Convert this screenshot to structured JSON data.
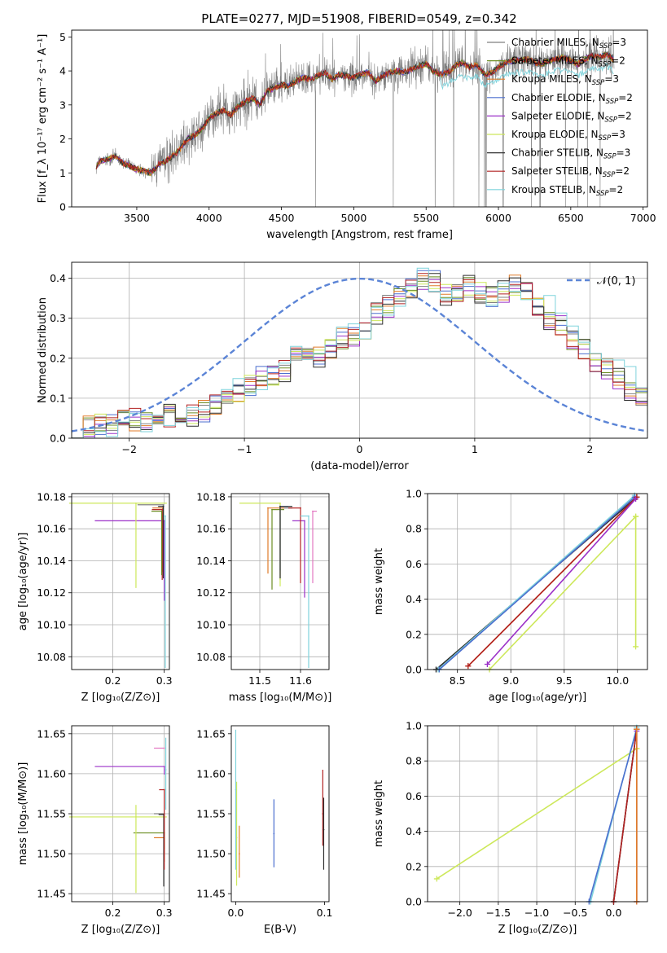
{
  "figure": {
    "title": "PLATE=0277, MJD=51908, FIBERID=0549, z=0.342"
  },
  "series_styles": [
    {
      "name": "Chabrier MILES",
      "nssp": "3",
      "color": "#808080"
    },
    {
      "name": "Salpeter MILES",
      "nssp": "2",
      "color": "#6b8e23"
    },
    {
      "name": "Kroupa MILES",
      "nssp": "3",
      "color": "#e07b2a"
    },
    {
      "name": "Chabrier ELODIE",
      "nssp": "2",
      "color": "#4c6fcf"
    },
    {
      "name": "Salpeter ELODIE",
      "nssp": "2",
      "color": "#9b30c8"
    },
    {
      "name": "Kroupa ELODIE",
      "nssp": "3",
      "color": "#cde85a"
    },
    {
      "name": "Chabrier STELIB",
      "nssp": "3",
      "color": "#2f2f2f"
    },
    {
      "name": "Salpeter STELIB",
      "nssp": "2",
      "color": "#b22222"
    },
    {
      "name": "Kroupa STELIB",
      "nssp": "2",
      "color": "#7fd3dc"
    }
  ],
  "chart_data": [
    {
      "id": "spectrum",
      "type": "line",
      "xlabel": "wavelength [Angstrom, rest frame]",
      "ylabel": "Flux [f_λ 10⁻¹⁷ erg cm⁻² s⁻¹ A⁻¹]",
      "xlim": [
        3050,
        7030
      ],
      "ylim": [
        0,
        5.2
      ],
      "xticks": [
        3500,
        4000,
        4500,
        5000,
        5500,
        6000,
        6500,
        7000
      ],
      "yticks": [
        0,
        1,
        2,
        3,
        4,
        5
      ],
      "grid": false,
      "legend_position": "top-right",
      "legend_suffix": "N_SSP",
      "x_start": 3220,
      "x_end": 6800,
      "model_curve": {
        "x": [
          3220,
          3240,
          3260,
          3300,
          3350,
          3400,
          3450,
          3500,
          3550,
          3600,
          3650,
          3700,
          3750,
          3800,
          3850,
          3900,
          3950,
          4000,
          4050,
          4100,
          4150,
          4200,
          4250,
          4300,
          4350,
          4400,
          4450,
          4500,
          4550,
          4600,
          4650,
          4700,
          4750,
          4800,
          4850,
          4900,
          4950,
          5000,
          5050,
          5100,
          5150,
          5200,
          5250,
          5300,
          5350,
          5400,
          5450,
          5500,
          5550,
          5600,
          5650,
          5700,
          5750,
          5800,
          5850,
          5900,
          5950,
          6000,
          6050,
          6100,
          6150,
          6200,
          6250,
          6300,
          6350,
          6400,
          6450,
          6500,
          6550,
          6600,
          6650,
          6700,
          6750,
          6800
        ],
        "y": [
          1.2,
          1.3,
          1.35,
          1.4,
          1.5,
          1.3,
          1.2,
          1.1,
          1.05,
          1.0,
          1.25,
          1.35,
          1.5,
          1.7,
          2.0,
          2.1,
          2.3,
          2.6,
          2.75,
          2.85,
          2.7,
          2.95,
          3.1,
          3.2,
          3.0,
          3.4,
          3.5,
          3.6,
          3.55,
          3.7,
          3.8,
          3.75,
          3.85,
          3.95,
          3.75,
          3.9,
          3.85,
          3.8,
          3.9,
          3.95,
          3.7,
          3.85,
          3.95,
          4.0,
          3.95,
          4.05,
          4.15,
          4.2,
          4.0,
          3.9,
          3.95,
          4.15,
          4.25,
          4.1,
          4.2,
          3.9,
          3.95,
          4.1,
          4.25,
          4.3,
          4.3,
          4.35,
          4.25,
          4.2,
          4.3,
          4.35,
          4.4,
          4.3,
          4.2,
          4.35,
          4.45,
          4.4,
          4.5,
          4.3
        ]
      }
    },
    {
      "id": "residuals",
      "type": "step",
      "xlabel": "(data-model)/error",
      "ylabel": "Normed distribution",
      "xlim": [
        -2.5,
        2.5
      ],
      "ylim": [
        0,
        0.44
      ],
      "xticks": [
        -2,
        -1,
        0,
        1,
        2
      ],
      "yticks": [
        0.0,
        0.1,
        0.2,
        0.3,
        0.4
      ],
      "grid": true,
      "legend": [
        {
          "label": "𝒩(0, 1)",
          "color": "#5b84d6"
        }
      ],
      "legend_position": "top-right",
      "bin_width": 0.1,
      "bin_start": -2.5,
      "base_hist": [
        0.03,
        0.03,
        0.035,
        0.03,
        0.04,
        0.045,
        0.035,
        0.04,
        0.055,
        0.06,
        0.055,
        0.07,
        0.09,
        0.1,
        0.12,
        0.13,
        0.15,
        0.16,
        0.17,
        0.2,
        0.21,
        0.2,
        0.23,
        0.25,
        0.26,
        0.27,
        0.31,
        0.33,
        0.35,
        0.38,
        0.4,
        0.39,
        0.36,
        0.37,
        0.38,
        0.36,
        0.35,
        0.37,
        0.38,
        0.36,
        0.33,
        0.3,
        0.28,
        0.25,
        0.22,
        0.19,
        0.17,
        0.15,
        0.12,
        0.1,
        0.09,
        0.08,
        0.08,
        0.07,
        0.06,
        0.05,
        0.05,
        0.05,
        0.04,
        0.04
      ]
    },
    {
      "id": "age_vs_Z",
      "type": "errorbar",
      "xlabel": "Z [log₁₀(Z/Z⊙)]",
      "ylabel": "age  [log₁₀(age/yr)]",
      "xlim": [
        0.12,
        0.31
      ],
      "ylim": [
        10.072,
        10.182
      ],
      "xticks": [
        0.2,
        0.3
      ],
      "yticks": [
        10.08,
        10.1,
        10.12,
        10.14,
        10.16,
        10.18
      ],
      "grid": true,
      "points": [
        {
          "series": 0,
          "x": 0.298,
          "y": 10.175,
          "xerr_lo": 0.05,
          "xerr_hi": 0.0,
          "yerr_lo": 0.045,
          "yerr_hi": 0.0
        },
        {
          "series": 2,
          "x": 0.297,
          "y": 10.173,
          "xerr_lo": 0.02,
          "xerr_hi": 0.0,
          "yerr_lo": 0.04,
          "yerr_hi": 0.0
        },
        {
          "series": 4,
          "x": 0.3,
          "y": 10.165,
          "xerr_lo": 0.135,
          "xerr_hi": 0.0,
          "yerr_lo": 0.05,
          "yerr_hi": 0.0
        },
        {
          "series": 5,
          "x": 0.245,
          "y": 10.176,
          "xerr_lo": 0.13,
          "xerr_hi": 0.06,
          "yerr_lo": 0.053,
          "yerr_hi": 0.0
        },
        {
          "series": 6,
          "x": 0.298,
          "y": 10.174,
          "xerr_lo": 0.01,
          "xerr_hi": 0.0,
          "yerr_lo": 0.045,
          "yerr_hi": 0.0
        },
        {
          "series": 7,
          "x": 0.296,
          "y": 10.172,
          "xerr_lo": 0.02,
          "xerr_hi": 0.0,
          "yerr_lo": 0.044,
          "yerr_hi": 0.0
        },
        {
          "series": 8,
          "x": 0.302,
          "y": 10.168,
          "xerr_lo": 0.003,
          "xerr_hi": 0.0,
          "yerr_lo": 0.095,
          "yerr_hi": 0.0
        },
        {
          "series": 1,
          "x": 0.295,
          "y": 10.171,
          "xerr_lo": 0.02,
          "xerr_hi": 0.0,
          "yerr_lo": 0.04,
          "yerr_hi": 0.0
        }
      ]
    },
    {
      "id": "age_vs_mass",
      "type": "errorbar",
      "xlabel": "mass [log₁₀(M/M⊙)]",
      "ylabel": "",
      "xlim": [
        11.43,
        11.67
      ],
      "ylim": [
        10.072,
        10.182
      ],
      "xticks": [
        11.5,
        11.6
      ],
      "yticks": [
        10.08,
        10.1,
        10.12,
        10.14,
        10.16,
        10.18
      ],
      "grid": true,
      "points": [
        {
          "series": 0,
          "x": 11.55,
          "y": 10.173,
          "xerr_lo": 0.0,
          "xerr_hi": 0.03,
          "yerr_lo": 0.045,
          "yerr_hi": 0.0
        },
        {
          "series": 1,
          "x": 11.53,
          "y": 10.172,
          "xerr_lo": 0.0,
          "xerr_hi": 0.03,
          "yerr_lo": 0.05,
          "yerr_hi": 0.0
        },
        {
          "series": 2,
          "x": 11.52,
          "y": 10.173,
          "xerr_lo": 0.0,
          "xerr_hi": 0.04,
          "yerr_lo": 0.041,
          "yerr_hi": 0.0
        },
        {
          "series": 3,
          "x": 11.55,
          "y": 10.174,
          "xerr_lo": 0.0,
          "xerr_hi": 0.02,
          "yerr_lo": 0.04,
          "yerr_hi": 0.0
        },
        {
          "series": 4,
          "x": 11.61,
          "y": 10.165,
          "xerr_lo": 0.03,
          "xerr_hi": 0.0,
          "yerr_lo": 0.048,
          "yerr_hi": 0.0
        },
        {
          "series": 5,
          "x": 11.55,
          "y": 10.176,
          "xerr_lo": 0.1,
          "xerr_hi": 0.0,
          "yerr_lo": 0.052,
          "yerr_hi": 0.0
        },
        {
          "series": 6,
          "x": 11.55,
          "y": 10.174,
          "xerr_lo": 0.0,
          "xerr_hi": 0.03,
          "yerr_lo": 0.045,
          "yerr_hi": 0.0
        },
        {
          "series": 7,
          "x": 11.6,
          "y": 10.173,
          "xerr_lo": 0.03,
          "xerr_hi": 0.0,
          "yerr_lo": 0.047,
          "yerr_hi": 0.0
        },
        {
          "series": 8,
          "x": 11.62,
          "y": 10.168,
          "xerr_lo": 0.02,
          "xerr_hi": 0.0,
          "yerr_lo": 0.095,
          "yerr_hi": 0.0
        },
        {
          "series": 9,
          "x": 11.63,
          "y": 10.171,
          "xerr_lo": 0.0,
          "xerr_hi": 0.01,
          "yerr_lo": 0.045,
          "yerr_hi": 0.0
        }
      ],
      "extra_colors": [
        "#e377c2"
      ]
    },
    {
      "id": "weight_vs_age",
      "type": "line",
      "xlabel": "age  [log₁₀(age/yr)]",
      "ylabel": "mass weight",
      "xlim": [
        8.22,
        10.28
      ],
      "ylim": [
        0,
        1.0
      ],
      "xticks": [
        8.5,
        9.0,
        9.5,
        10.0
      ],
      "yticks": [
        0.0,
        0.2,
        0.4,
        0.6,
        0.8,
        1.0
      ],
      "grid": true,
      "lines": [
        {
          "series": 0,
          "x": [
            8.3,
            10.18
          ],
          "y": [
            0.0,
            0.98
          ]
        },
        {
          "series": 6,
          "x": [
            8.3,
            10.18
          ],
          "y": [
            0.0,
            0.98
          ]
        },
        {
          "series": 8,
          "x": [
            8.32,
            10.16
          ],
          "y": [
            0.0,
            0.99
          ]
        },
        {
          "series": 3,
          "x": [
            8.33,
            10.16
          ],
          "y": [
            0.0,
            0.98
          ]
        },
        {
          "series": 2,
          "x": [
            8.6,
            10.18
          ],
          "y": [
            0.02,
            0.98
          ]
        },
        {
          "series": 7,
          "x": [
            8.6,
            10.18
          ],
          "y": [
            0.02,
            0.98
          ]
        },
        {
          "series": 4,
          "x": [
            8.78,
            10.17
          ],
          "y": [
            0.03,
            0.97
          ]
        },
        {
          "series": 5,
          "x": [
            8.8,
            10.17
          ],
          "y": [
            0.0,
            0.87
          ]
        },
        {
          "series": 5,
          "x": [
            10.17,
            10.17
          ],
          "y": [
            0.87,
            0.13
          ]
        }
      ]
    },
    {
      "id": "mass_vs_Z",
      "type": "errorbar",
      "xlabel": "Z [log₁₀(Z/Z⊙)]",
      "ylabel": "mass [log₁₀(M/M⊙)]",
      "xlim": [
        0.12,
        0.31
      ],
      "ylim": [
        11.44,
        11.66
      ],
      "xticks": [
        0.2,
        0.3
      ],
      "yticks": [
        11.45,
        11.5,
        11.55,
        11.6,
        11.65
      ],
      "grid": true,
      "points": [
        {
          "series": 0,
          "x": 0.3,
          "y": 11.55,
          "xerr_lo": 0.02,
          "xerr_hi": 0.0,
          "yerr_lo": 0.05,
          "yerr_hi": 0.0
        },
        {
          "series": 2,
          "x": 0.3,
          "y": 11.52,
          "xerr_lo": 0.02,
          "xerr_hi": 0.0,
          "yerr_lo": 0.03,
          "yerr_hi": 0.0
        },
        {
          "series": 1,
          "x": 0.3,
          "y": 11.526,
          "xerr_lo": 0.06,
          "xerr_hi": 0.0,
          "yerr_lo": 0.02,
          "yerr_hi": 0.0
        },
        {
          "series": 4,
          "x": 0.3,
          "y": 11.609,
          "xerr_lo": 0.135,
          "xerr_hi": 0.0,
          "yerr_lo": 0.01,
          "yerr_hi": 0.0
        },
        {
          "series": 5,
          "x": 0.245,
          "y": 11.546,
          "xerr_lo": 0.13,
          "xerr_hi": 0.06,
          "yerr_lo": 0.095,
          "yerr_hi": 0.015
        },
        {
          "series": 6,
          "x": 0.299,
          "y": 11.549,
          "xerr_lo": 0.01,
          "xerr_hi": 0.0,
          "yerr_lo": 0.09,
          "yerr_hi": 0.0
        },
        {
          "series": 7,
          "x": 0.3,
          "y": 11.58,
          "xerr_lo": 0.01,
          "xerr_hi": 0.0,
          "yerr_lo": 0.1,
          "yerr_hi": 0.0
        },
        {
          "series": 8,
          "x": 0.303,
          "y": 11.605,
          "xerr_lo": 0.0,
          "xerr_hi": 0.0,
          "yerr_lo": 0.05,
          "yerr_hi": 0.04
        },
        {
          "series": 9,
          "x": 0.3,
          "y": 11.632,
          "xerr_lo": 0.02,
          "xerr_hi": 0.0,
          "yerr_lo": 0.0,
          "yerr_hi": 0.0
        }
      ]
    },
    {
      "id": "mass_vs_EBV",
      "type": "errorbar",
      "xlabel": "E(B-V)",
      "ylabel": "",
      "xlim": [
        -0.005,
        0.105
      ],
      "ylim": [
        11.44,
        11.66
      ],
      "xticks": [
        0.0,
        0.1
      ],
      "yticks": [
        11.45,
        11.5,
        11.55,
        11.6,
        11.65
      ],
      "grid": false,
      "points": [
        {
          "series": 3,
          "x": 0.043,
          "y": 11.525,
          "xerr_lo": 0.0,
          "xerr_hi": 0.0,
          "yerr_lo": 0.042,
          "yerr_hi": 0.043
        },
        {
          "series": 7,
          "x": 0.098,
          "y": 11.55,
          "xerr_lo": 0.0,
          "xerr_hi": 0.0,
          "yerr_lo": 0.04,
          "yerr_hi": 0.055
        },
        {
          "series": 6,
          "x": 0.099,
          "y": 11.53,
          "xerr_lo": 0.0,
          "xerr_hi": 0.0,
          "yerr_lo": 0.05,
          "yerr_hi": 0.04
        },
        {
          "series": 2,
          "x": 0.004,
          "y": 11.5,
          "xerr_lo": 0.0,
          "xerr_hi": 0.0,
          "yerr_lo": 0.03,
          "yerr_hi": 0.035
        },
        {
          "series": 5,
          "x": 0.001,
          "y": 11.52,
          "xerr_lo": 0.0,
          "xerr_hi": 0.0,
          "yerr_lo": 0.06,
          "yerr_hi": 0.07
        },
        {
          "series": 8,
          "x": 0.0,
          "y": 11.58,
          "xerr_lo": 0.0,
          "xerr_hi": 0.0,
          "yerr_lo": 0.1,
          "yerr_hi": 0.075
        }
      ]
    },
    {
      "id": "weight_vs_Z",
      "type": "line",
      "xlabel": "Z [log₁₀(Z/Z⊙)]",
      "ylabel": "mass weight",
      "xlim": [
        -2.42,
        0.44
      ],
      "ylim": [
        0,
        1.0
      ],
      "xticks": [
        -2.0,
        -1.5,
        -1.0,
        -0.5,
        0.0
      ],
      "yticks": [
        0.0,
        0.2,
        0.4,
        0.6,
        0.8,
        1.0
      ],
      "grid": true,
      "lines": [
        {
          "series": 5,
          "x": [
            -2.3,
            0.3
          ],
          "y": [
            0.13,
            0.87
          ]
        },
        {
          "series": 5,
          "x": [
            0.3,
            0.3
          ],
          "y": [
            0.87,
            0.0
          ]
        },
        {
          "series": 8,
          "x": [
            -0.3,
            0.3
          ],
          "y": [
            0.0,
            0.99
          ]
        },
        {
          "series": 3,
          "x": [
            -0.32,
            0.3
          ],
          "y": [
            0.0,
            0.98
          ]
        },
        {
          "series": 0,
          "x": [
            0.0,
            0.3
          ],
          "y": [
            0.0,
            0.98
          ]
        },
        {
          "series": 6,
          "x": [
            0.0,
            0.3
          ],
          "y": [
            0.0,
            0.98
          ]
        },
        {
          "series": 7,
          "x": [
            0.0,
            0.3
          ],
          "y": [
            0.0,
            0.98
          ]
        },
        {
          "series": 4,
          "x": [
            0.3,
            0.3
          ],
          "y": [
            0.0,
            0.97
          ]
        },
        {
          "series": 2,
          "x": [
            0.3,
            0.3
          ],
          "y": [
            0.0,
            0.98
          ]
        }
      ]
    }
  ]
}
